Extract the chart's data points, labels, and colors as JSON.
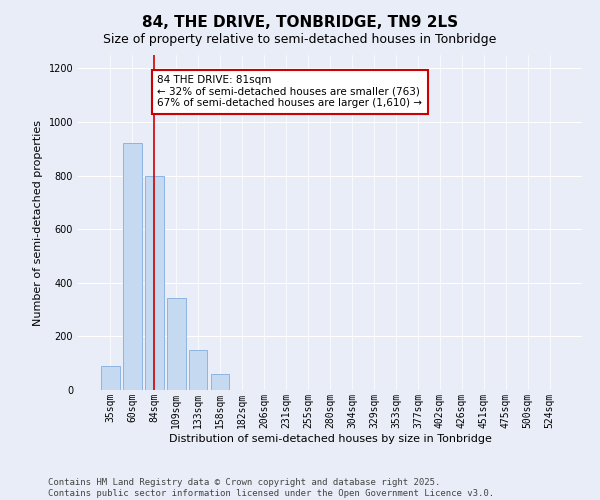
{
  "title": "84, THE DRIVE, TONBRIDGE, TN9 2LS",
  "subtitle": "Size of property relative to semi-detached houses in Tonbridge",
  "xlabel": "Distribution of semi-detached houses by size in Tonbridge",
  "ylabel": "Number of semi-detached properties",
  "categories": [
    "35sqm",
    "60sqm",
    "84sqm",
    "109sqm",
    "133sqm",
    "158sqm",
    "182sqm",
    "206sqm",
    "231sqm",
    "255sqm",
    "280sqm",
    "304sqm",
    "329sqm",
    "353sqm",
    "377sqm",
    "402sqm",
    "426sqm",
    "451sqm",
    "475sqm",
    "500sqm",
    "524sqm"
  ],
  "values": [
    90,
    920,
    800,
    345,
    150,
    60,
    0,
    0,
    0,
    0,
    0,
    0,
    0,
    0,
    0,
    0,
    0,
    0,
    0,
    0,
    0
  ],
  "bar_color": "#c5d9f1",
  "bar_edge_color": "#8db4e2",
  "highlight_index": 2,
  "highlight_line_color": "#cc0000",
  "annotation_line1": "84 THE DRIVE: 81sqm",
  "annotation_line2": "← 32% of semi-detached houses are smaller (763)",
  "annotation_line3": "67% of semi-detached houses are larger (1,610) →",
  "annotation_box_color": "#ffffff",
  "annotation_box_edge_color": "#cc0000",
  "ylim": [
    0,
    1250
  ],
  "yticks": [
    0,
    200,
    400,
    600,
    800,
    1000,
    1200
  ],
  "footer_text": "Contains HM Land Registry data © Crown copyright and database right 2025.\nContains public sector information licensed under the Open Government Licence v3.0.",
  "background_color": "#e8edf7",
  "plot_background_color": "#e8edf7",
  "title_fontsize": 11,
  "subtitle_fontsize": 9,
  "axis_label_fontsize": 8,
  "tick_fontsize": 7,
  "annotation_fontsize": 7.5,
  "footer_fontsize": 6.5
}
